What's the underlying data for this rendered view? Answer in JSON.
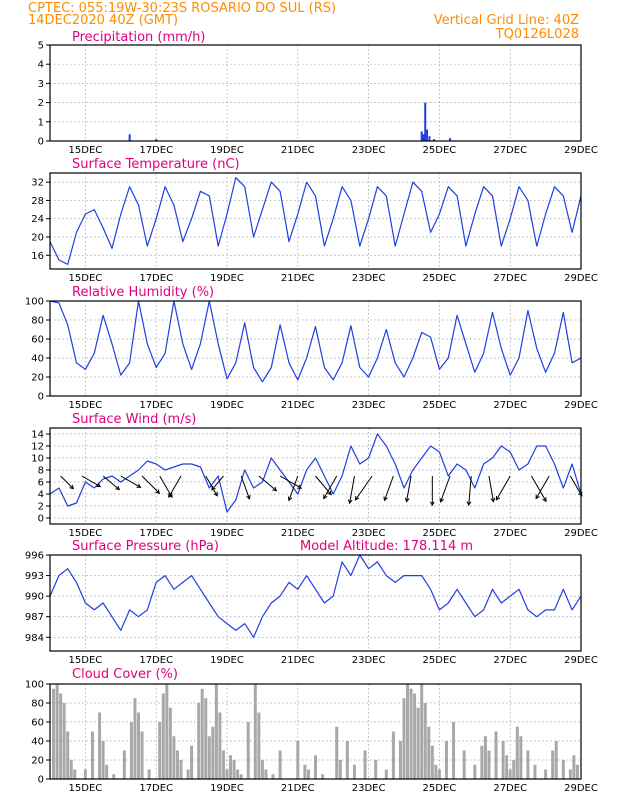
{
  "header": {
    "line1_left": "CPTEC:  055:19W-30:23S  ROSARIO DO SUL (RS)",
    "line2_left": "14DEC2020 40Z (GMT)",
    "line2_right": "Vertical Grid Line: 40Z",
    "line3_right": "TQ0126L028"
  },
  "colors": {
    "header": "#ff8c00",
    "panel_title": "#e0007f",
    "series": "#1f3fe0",
    "precip_bar": "#1f3fe0",
    "cloud_bar": "#a8a8a8",
    "wind_arrow": "#000000"
  },
  "x_tick_labels": [
    "15DEC",
    "17DEC",
    "19DEC",
    "21DEC",
    "23DEC",
    "25DEC",
    "27DEC",
    "29DEC"
  ],
  "chart_data": [
    {
      "type": "bar",
      "title": "Precipitation (mm/h)",
      "ylim": [
        0,
        5
      ],
      "yticks": [
        0,
        1,
        2,
        3,
        4,
        5
      ],
      "x_unit": "day",
      "xlim": [
        14,
        29
      ],
      "x": [
        16.25,
        17.0,
        24.5,
        24.55,
        24.6,
        24.65,
        24.72,
        24.85,
        25.3
      ],
      "values": [
        0.35,
        0.1,
        0.5,
        0.35,
        2.0,
        0.6,
        0.25,
        0.1,
        0.15
      ],
      "grid": true
    },
    {
      "type": "line",
      "title": "Surface Temperature (nC)",
      "ylim": [
        13,
        34
      ],
      "yticks": [
        16,
        20,
        24,
        28,
        32
      ],
      "x_unit": "day",
      "xlim": [
        14,
        29
      ],
      "x": [
        14.0,
        14.25,
        14.5,
        14.75,
        15.0,
        15.25,
        15.5,
        15.75,
        16.0,
        16.25,
        16.5,
        16.75,
        17.0,
        17.25,
        17.5,
        17.75,
        18.0,
        18.25,
        18.5,
        18.75,
        19.0,
        19.25,
        19.5,
        19.75,
        20.0,
        20.25,
        20.5,
        20.75,
        21.0,
        21.25,
        21.5,
        21.75,
        22.0,
        22.25,
        22.5,
        22.75,
        23.0,
        23.25,
        23.5,
        23.75,
        24.0,
        24.25,
        24.5,
        24.75,
        25.0,
        25.25,
        25.5,
        25.75,
        26.0,
        26.25,
        26.5,
        26.75,
        27.0,
        27.25,
        27.5,
        27.75,
        28.0,
        28.25,
        28.5,
        28.75,
        29.0
      ],
      "values": [
        19,
        15,
        14,
        21,
        25,
        26,
        22,
        17.5,
        25,
        31,
        27,
        18,
        24,
        31,
        27,
        19,
        24,
        30,
        29,
        18,
        25,
        33,
        31,
        20,
        26,
        32,
        30,
        19,
        25,
        32,
        29,
        18,
        24,
        31,
        28,
        18,
        24,
        31,
        29,
        18,
        25,
        32,
        30,
        21,
        25,
        31,
        29,
        18,
        25,
        31,
        29,
        18,
        24,
        31,
        28,
        18,
        25,
        31,
        29,
        21,
        29
      ],
      "grid": true
    },
    {
      "type": "line",
      "title": "Relative Humidity (%)",
      "ylim": [
        0,
        100
      ],
      "yticks": [
        0,
        20,
        40,
        60,
        80,
        100
      ],
      "x_unit": "day",
      "xlim": [
        14,
        29
      ],
      "x": [
        14.0,
        14.25,
        14.5,
        14.75,
        15.0,
        15.25,
        15.5,
        15.75,
        16.0,
        16.25,
        16.5,
        16.75,
        17.0,
        17.25,
        17.5,
        17.75,
        18.0,
        18.25,
        18.5,
        18.75,
        19.0,
        19.25,
        19.5,
        19.75,
        20.0,
        20.25,
        20.5,
        20.75,
        21.0,
        21.25,
        21.5,
        21.75,
        22.0,
        22.25,
        22.5,
        22.75,
        23.0,
        23.25,
        23.5,
        23.75,
        24.0,
        24.25,
        24.5,
        24.75,
        25.0,
        25.25,
        25.5,
        25.75,
        26.0,
        26.25,
        26.5,
        26.75,
        27.0,
        27.25,
        27.5,
        27.75,
        28.0,
        28.25,
        28.5,
        28.75,
        29.0
      ],
      "values": [
        100,
        98,
        75,
        35,
        28,
        45,
        85,
        55,
        22,
        35,
        100,
        55,
        30,
        45,
        100,
        55,
        28,
        55,
        100,
        55,
        18,
        35,
        77,
        30,
        15,
        30,
        75,
        35,
        17,
        40,
        73,
        30,
        17,
        35,
        74,
        30,
        20,
        40,
        70,
        35,
        20,
        40,
        67,
        62,
        28,
        40,
        85,
        55,
        25,
        45,
        88,
        50,
        22,
        40,
        90,
        50,
        25,
        45,
        88,
        35,
        40
      ],
      "grid": true
    },
    {
      "type": "line",
      "title": "Surface Wind (m/s)",
      "ylim": [
        -1,
        15
      ],
      "yticks": [
        0,
        2,
        4,
        6,
        8,
        10,
        12,
        14
      ],
      "x_unit": "day",
      "xlim": [
        14,
        29
      ],
      "x": [
        14.0,
        14.25,
        14.5,
        14.75,
        15.0,
        15.25,
        15.5,
        15.75,
        16.0,
        16.25,
        16.5,
        16.75,
        17.0,
        17.25,
        17.5,
        17.75,
        18.0,
        18.25,
        18.5,
        18.75,
        19.0,
        19.25,
        19.5,
        19.75,
        20.0,
        20.25,
        20.5,
        20.75,
        21.0,
        21.25,
        21.5,
        21.75,
        22.0,
        22.25,
        22.5,
        22.75,
        23.0,
        23.25,
        23.5,
        23.75,
        24.0,
        24.25,
        24.5,
        24.75,
        25.0,
        25.25,
        25.5,
        25.75,
        26.0,
        26.25,
        26.5,
        26.75,
        27.0,
        27.25,
        27.5,
        27.75,
        28.0,
        28.25,
        28.5,
        28.75,
        29.0
      ],
      "values": [
        4,
        5,
        2,
        2.5,
        6,
        5,
        6.5,
        7,
        6,
        7,
        8,
        9.5,
        9,
        8,
        8.5,
        9,
        9,
        8.5,
        5,
        7,
        1,
        3,
        8,
        5,
        6,
        10,
        8,
        6,
        4,
        8,
        10,
        7,
        4,
        7,
        12,
        9,
        10,
        14,
        12,
        9,
        5,
        8,
        10,
        12,
        11,
        7,
        9,
        8,
        5,
        9,
        10,
        12,
        11,
        8,
        9,
        12,
        12,
        9,
        5,
        9,
        4
      ],
      "wind_barbs": [
        {
          "day": 14.3,
          "dir_deg": 315,
          "speed": 5
        },
        {
          "day": 14.9,
          "dir_deg": 330,
          "speed": 7
        },
        {
          "day": 15.5,
          "dir_deg": 320,
          "speed": 7
        },
        {
          "day": 16.0,
          "dir_deg": 330,
          "speed": 8
        },
        {
          "day": 16.6,
          "dir_deg": 315,
          "speed": 9
        },
        {
          "day": 17.1,
          "dir_deg": 300,
          "speed": 9
        },
        {
          "day": 17.7,
          "dir_deg": 240,
          "speed": 9
        },
        {
          "day": 18.4,
          "dir_deg": 300,
          "speed": 8
        },
        {
          "day": 18.9,
          "dir_deg": 230,
          "speed": 5
        },
        {
          "day": 19.4,
          "dir_deg": 290,
          "speed": 9
        },
        {
          "day": 19.9,
          "dir_deg": 320,
          "speed": 8
        },
        {
          "day": 20.5,
          "dir_deg": 330,
          "speed": 9
        },
        {
          "day": 21.0,
          "dir_deg": 250,
          "speed": 10
        },
        {
          "day": 21.5,
          "dir_deg": 310,
          "speed": 9
        },
        {
          "day": 22.1,
          "dir_deg": 240,
          "speed": 10
        },
        {
          "day": 22.6,
          "dir_deg": 260,
          "speed": 11
        },
        {
          "day": 23.1,
          "dir_deg": 235,
          "speed": 12
        },
        {
          "day": 23.7,
          "dir_deg": 250,
          "speed": 10
        },
        {
          "day": 24.2,
          "dir_deg": 260,
          "speed": 10
        },
        {
          "day": 24.8,
          "dir_deg": 270,
          "speed": 12
        },
        {
          "day": 25.3,
          "dir_deg": 250,
          "speed": 11
        },
        {
          "day": 25.9,
          "dir_deg": 265,
          "speed": 12
        },
        {
          "day": 26.4,
          "dir_deg": 280,
          "speed": 10
        },
        {
          "day": 27.0,
          "dir_deg": 240,
          "speed": 11
        },
        {
          "day": 27.6,
          "dir_deg": 300,
          "speed": 12
        },
        {
          "day": 28.1,
          "dir_deg": 240,
          "speed": 10
        },
        {
          "day": 28.7,
          "dir_deg": 300,
          "speed": 8
        }
      ],
      "grid": true
    },
    {
      "type": "line",
      "title": "Surface Pressure (hPa)",
      "annotation": "Model Altitude: 178.114 m",
      "ylim": [
        982,
        996
      ],
      "yticks": [
        984,
        987,
        990,
        993,
        996
      ],
      "x_unit": "day",
      "xlim": [
        14,
        29
      ],
      "x": [
        14.0,
        14.25,
        14.5,
        14.75,
        15.0,
        15.25,
        15.5,
        15.75,
        16.0,
        16.25,
        16.5,
        16.75,
        17.0,
        17.25,
        17.5,
        17.75,
        18.0,
        18.25,
        18.5,
        18.75,
        19.0,
        19.25,
        19.5,
        19.75,
        20.0,
        20.25,
        20.5,
        20.75,
        21.0,
        21.25,
        21.5,
        21.75,
        22.0,
        22.25,
        22.5,
        22.75,
        23.0,
        23.25,
        23.5,
        23.75,
        24.0,
        24.25,
        24.5,
        24.75,
        25.0,
        25.25,
        25.5,
        25.75,
        26.0,
        26.25,
        26.5,
        26.75,
        27.0,
        27.25,
        27.5,
        27.75,
        28.0,
        28.25,
        28.5,
        28.75,
        29.0
      ],
      "values": [
        990,
        993,
        994,
        992,
        989,
        988,
        989,
        987,
        985,
        988,
        987,
        988,
        992,
        993,
        991,
        992,
        993,
        991,
        989,
        987,
        986,
        985,
        986,
        984,
        987,
        989,
        990,
        992,
        991,
        993,
        991,
        989,
        990,
        995,
        993,
        996,
        994,
        995,
        993,
        992,
        993,
        993,
        993,
        991,
        988,
        989,
        991,
        989,
        987,
        988,
        991,
        989,
        990,
        991,
        988,
        987,
        988,
        988,
        991,
        988,
        990
      ],
      "grid": true
    },
    {
      "type": "bar",
      "title": "Cloud Cover (%)",
      "ylim": [
        0,
        100
      ],
      "yticks": [
        0,
        20,
        40,
        60,
        80,
        100
      ],
      "x_unit": "day",
      "xlim": [
        14,
        29
      ],
      "x": [
        14.1,
        14.2,
        14.3,
        14.4,
        14.5,
        14.6,
        14.7,
        15.0,
        15.2,
        15.4,
        15.5,
        15.6,
        15.8,
        16.1,
        16.3,
        16.4,
        16.5,
        16.6,
        16.8,
        17.1,
        17.2,
        17.3,
        17.4,
        17.5,
        17.6,
        17.7,
        17.9,
        18.0,
        18.2,
        18.3,
        18.4,
        18.5,
        18.6,
        18.7,
        18.8,
        18.9,
        19.0,
        19.1,
        19.2,
        19.3,
        19.4,
        19.6,
        19.8,
        19.9,
        20.0,
        20.1,
        20.3,
        20.5,
        21.0,
        21.2,
        21.3,
        21.5,
        21.7,
        22.1,
        22.2,
        22.4,
        22.6,
        22.9,
        23.2,
        23.5,
        23.7,
        23.9,
        24.0,
        24.1,
        24.2,
        24.3,
        24.4,
        24.5,
        24.6,
        24.7,
        24.8,
        24.9,
        25.0,
        25.2,
        25.4,
        25.7,
        26.0,
        26.2,
        26.3,
        26.4,
        26.6,
        26.8,
        26.9,
        27.0,
        27.1,
        27.2,
        27.3,
        27.5,
        27.7,
        28.0,
        28.2,
        28.3,
        28.5,
        28.7,
        28.8,
        28.9
      ],
      "values": [
        95,
        100,
        90,
        80,
        50,
        20,
        10,
        10,
        50,
        70,
        40,
        15,
        5,
        30,
        60,
        85,
        70,
        50,
        10,
        60,
        90,
        100,
        75,
        45,
        30,
        20,
        10,
        35,
        80,
        95,
        85,
        45,
        55,
        100,
        70,
        30,
        10,
        25,
        20,
        10,
        5,
        60,
        100,
        70,
        20,
        10,
        5,
        30,
        40,
        15,
        10,
        25,
        5,
        55,
        20,
        40,
        15,
        30,
        20,
        10,
        50,
        40,
        85,
        100,
        95,
        90,
        75,
        100,
        80,
        55,
        35,
        15,
        10,
        40,
        60,
        30,
        15,
        35,
        45,
        30,
        50,
        40,
        25,
        10,
        20,
        55,
        45,
        30,
        15,
        10,
        30,
        40,
        20,
        10,
        25,
        15
      ],
      "grid": true
    }
  ]
}
